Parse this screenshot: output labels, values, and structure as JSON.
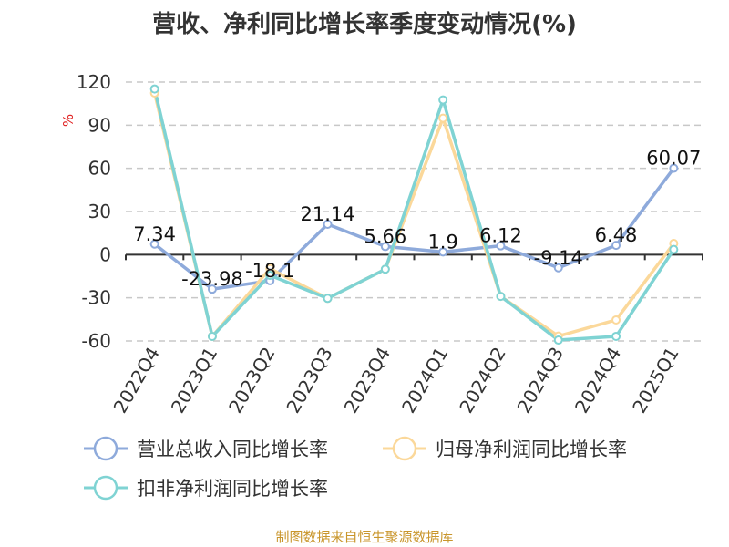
{
  "chart_data": {
    "type": "line",
    "title": "营收、净利同比增长率季度变动情况(%)",
    "ylabel": "%",
    "xlabel": "",
    "ylim": [
      -60,
      120
    ],
    "yticks": [
      -60,
      -30,
      0,
      30,
      60,
      90,
      120
    ],
    "grid": true,
    "legend_position": "bottom",
    "categories": [
      "2022Q4",
      "2023Q1",
      "2023Q2",
      "2023Q3",
      "2023Q4",
      "2024Q1",
      "2024Q2",
      "2024Q3",
      "2024Q4",
      "2025Q1"
    ],
    "series": [
      {
        "name": "营业总收入同比增长率",
        "color": "#8eaadb",
        "show_labels": true,
        "values": [
          7.34,
          -23.98,
          -18.1,
          21.14,
          5.66,
          1.9,
          6.12,
          -9.14,
          6.48,
          60.07
        ]
      },
      {
        "name": "归母净利润同比增长率",
        "color": "#fbd89a",
        "show_labels": false,
        "values": [
          112.4,
          -56.8,
          -9.7,
          -30.4,
          -10.1,
          94.9,
          -29,
          -56.6,
          -45.4,
          7.8
        ]
      },
      {
        "name": "扣非净利润同比增长率",
        "color": "#7fd3d3",
        "show_labels": false,
        "values": [
          115.2,
          -56.8,
          -14.4,
          -30.4,
          -10.1,
          107.6,
          -29,
          -59.4,
          -56.8,
          3.6
        ]
      }
    ]
  },
  "source": "制图数据来自恒生聚源数据库"
}
